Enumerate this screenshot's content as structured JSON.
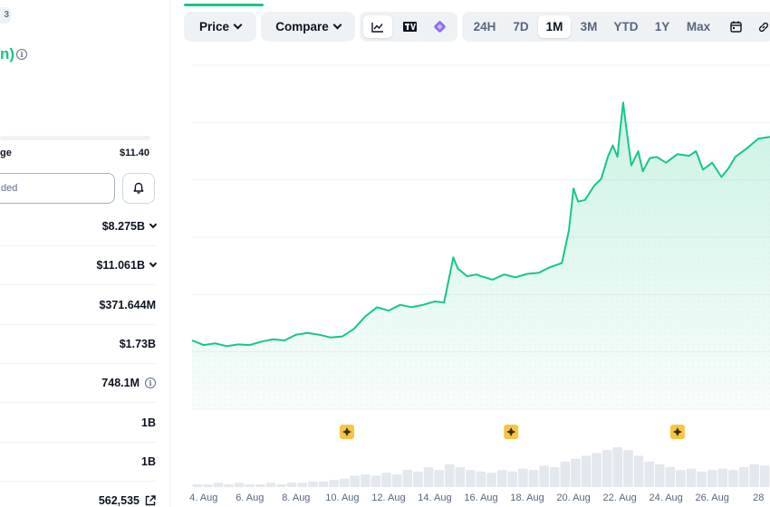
{
  "left_panel": {
    "top_fragment": "3",
    "price_change_fragment": "n)",
    "range_label": "ge",
    "range_high": "$11.40",
    "search_placeholder": "ded",
    "stats": [
      {
        "value": "$8.275B",
        "has_chevron": true,
        "has_info": false,
        "has_link": false
      },
      {
        "value": "$11.061B",
        "has_chevron": true,
        "has_info": false,
        "has_link": false
      },
      {
        "value": "$371.644M",
        "has_chevron": false,
        "has_info": false,
        "has_link": false
      },
      {
        "value": "$1.73B",
        "has_chevron": false,
        "has_info": false,
        "has_link": false
      },
      {
        "value": "748.1M",
        "has_chevron": false,
        "has_info": true,
        "has_link": false
      },
      {
        "value": "1B",
        "has_chevron": false,
        "has_info": false,
        "has_link": false
      },
      {
        "value": "1B",
        "has_chevron": false,
        "has_info": false,
        "has_link": false
      },
      {
        "value": "562,535",
        "has_chevron": false,
        "has_info": false,
        "has_link": true
      }
    ]
  },
  "toolbar": {
    "price_label": "Price",
    "compare_label": "Compare",
    "view_icons": [
      "line-chart-icon",
      "tradingview-icon",
      "diamond-icon"
    ],
    "ranges": [
      "24H",
      "7D",
      "1M",
      "3M",
      "YTD",
      "1Y",
      "Max"
    ],
    "active_range": "1M",
    "extra_icons": [
      "calendar-icon",
      "link-icon"
    ]
  },
  "colors": {
    "line": "#16c784",
    "event_marker": "#f6c544",
    "volume": "#e3e7ee",
    "text_muted": "#58667e"
  },
  "chart_data": {
    "type": "area",
    "title": "",
    "xlabel": "",
    "ylabel": "",
    "x_ticks": [
      "4. Aug",
      "6. Aug",
      "8. Aug",
      "10. Aug",
      "12. Aug",
      "14. Aug",
      "16. Aug",
      "18. Aug",
      "20. Aug",
      "22. Aug",
      "24. Aug",
      "26. Aug",
      "28"
    ],
    "x_range": [
      3.5,
      28.5
    ],
    "y_range": [
      0,
      6
    ],
    "grid": true,
    "series": [
      {
        "x": [
          3.5,
          4.0,
          4.5,
          5.0,
          5.5,
          6.0,
          6.5,
          7.0,
          7.5,
          8.0,
          8.5,
          9.0,
          9.5,
          10.0,
          10.5,
          11.0,
          11.5,
          12.0,
          12.5,
          13.0,
          13.5,
          14.0,
          14.4,
          14.8,
          15.0,
          15.4,
          15.8,
          16.0,
          16.5,
          17.0,
          17.5,
          18.0,
          18.5,
          19.0,
          19.5,
          19.8,
          20.0,
          20.2,
          20.5,
          20.9,
          21.2,
          21.5,
          21.7,
          21.9,
          22.0,
          22.15,
          22.3,
          22.5,
          22.8,
          23.0,
          23.3,
          23.6,
          24.0,
          24.5,
          25.0,
          25.3,
          25.6,
          26.0,
          26.4,
          26.7,
          27.0,
          27.5,
          28.0,
          28.5
        ],
        "y": [
          1.2,
          1.12,
          1.15,
          1.1,
          1.13,
          1.12,
          1.18,
          1.22,
          1.2,
          1.3,
          1.33,
          1.3,
          1.25,
          1.27,
          1.4,
          1.62,
          1.78,
          1.72,
          1.82,
          1.78,
          1.82,
          1.88,
          1.86,
          2.65,
          2.45,
          2.32,
          2.35,
          2.32,
          2.26,
          2.35,
          2.3,
          2.36,
          2.38,
          2.48,
          2.55,
          3.12,
          3.85,
          3.62,
          3.65,
          3.9,
          4.02,
          4.42,
          4.6,
          4.4,
          4.8,
          5.35,
          4.85,
          4.25,
          4.5,
          4.15,
          4.38,
          4.4,
          4.3,
          4.45,
          4.42,
          4.5,
          4.18,
          4.3,
          4.05,
          4.2,
          4.4,
          4.55,
          4.72,
          4.75
        ]
      }
    ],
    "volume": [
      2,
      2,
      3,
      2,
      3,
      2,
      2,
      3,
      2,
      3,
      3,
      4,
      4,
      5,
      6,
      8,
      9,
      8,
      10,
      9,
      12,
      11,
      14,
      12,
      16,
      14,
      12,
      11,
      10,
      12,
      11,
      13,
      12,
      15,
      14,
      18,
      20,
      22,
      24,
      26,
      28,
      26,
      22,
      18,
      16,
      14,
      12,
      13,
      11,
      12,
      13,
      12,
      14,
      16,
      15
    ],
    "events_x": [
      10.2,
      17.3,
      24.5
    ]
  }
}
